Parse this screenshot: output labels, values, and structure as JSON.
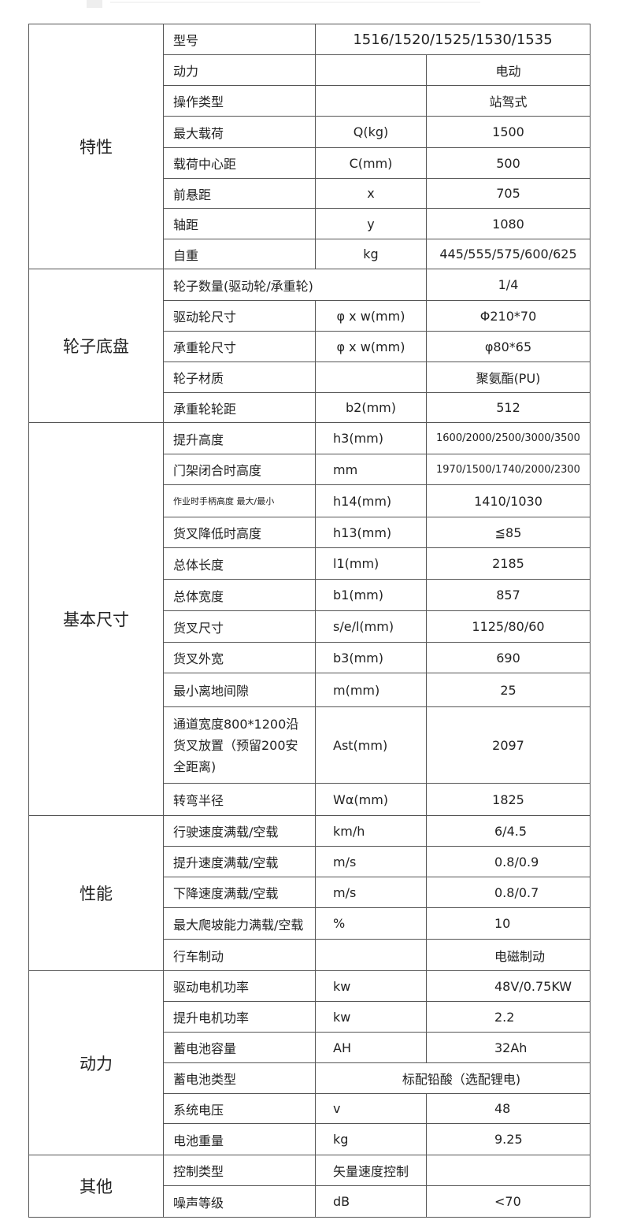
{
  "sections": [
    {
      "category": "特性",
      "rows": [
        {
          "name": "型号",
          "unit": "",
          "value": "1516/1520/1525/1530/1535",
          "span": "unit-value"
        },
        {
          "name": "动力",
          "unit": "",
          "value": "电动"
        },
        {
          "name": "操作类型",
          "unit": "",
          "value": "站驾式"
        },
        {
          "name": "最大载荷",
          "unit": "Q(kg)",
          "value": "1500"
        },
        {
          "name": "载荷中心距",
          "unit": "C(mm)",
          "value": "500"
        },
        {
          "name": "前悬距",
          "unit": "x",
          "value": "705"
        },
        {
          "name": "轴距",
          "unit": "y",
          "value": "1080"
        },
        {
          "name": "自重",
          "unit": "kg",
          "value": "445/555/575/600/625"
        }
      ]
    },
    {
      "category": "轮子底盘",
      "rows": [
        {
          "name": "轮子数量(驱动轮/承重轮)",
          "unit": "",
          "value": "1/4",
          "span": "name-unit"
        },
        {
          "name": "驱动轮尺寸",
          "unit": "φ x w(mm)",
          "value": "Φ210*70"
        },
        {
          "name": "承重轮尺寸",
          "unit": "φ x w(mm)",
          "value": "φ80*65"
        },
        {
          "name": "轮子材质",
          "unit": "",
          "value": "聚氨酯(PU)"
        },
        {
          "name": "承重轮轮距",
          "unit": "b2(mm)",
          "value": "512"
        }
      ]
    },
    {
      "category": "基本尺寸",
      "rows": [
        {
          "name": "提升高度",
          "unit": "h3(mm)",
          "value": "1600/2000/2500/3000/3500"
        },
        {
          "name": "门架闭合时高度",
          "unit": "mm",
          "value": "1970/1500/1740/2000/2300"
        },
        {
          "name": "作业时手柄高度  最大/最小",
          "unit": "h14(mm)",
          "value": "1410/1030"
        },
        {
          "name": "货叉降低时高度",
          "unit": "h13(mm)",
          "value": "≦85"
        },
        {
          "name": "总体长度",
          "unit": "l1(mm)",
          "value": "2185"
        },
        {
          "name": "总体宽度",
          "unit": "b1(mm)",
          "value": "857"
        },
        {
          "name": "货叉尺寸",
          "unit": "s/e/l(mm)",
          "value": "1125/80/60"
        },
        {
          "name": "货叉外宽",
          "unit": "b3(mm)",
          "value": "690"
        },
        {
          "name": "最小离地间隙",
          "unit": "m(mm)",
          "value": "25"
        },
        {
          "name": "通道宽度800*1200沿货叉放置（预留200安全距离)",
          "unit": "Ast(mm)",
          "value": "2097"
        },
        {
          "name": "转弯半径",
          "unit": "Wα(mm)",
          "value": "1825"
        }
      ]
    },
    {
      "category": "性能",
      "rows": [
        {
          "name": "行驶速度满载/空载",
          "unit": "km/h",
          "value": "6/4.5"
        },
        {
          "name": "提升速度满载/空载",
          "unit": "m/s",
          "value": "0.8/0.9"
        },
        {
          "name": "下降速度满载/空载",
          "unit": "m/s",
          "value": "0.8/0.7"
        },
        {
          "name": "最大爬坡能力满载/空载",
          "unit": "%",
          "value": "10"
        },
        {
          "name": "行车制动",
          "unit": "",
          "value": "电磁制动"
        }
      ]
    },
    {
      "category": "动力",
      "rows": [
        {
          "name": "驱动电机功率",
          "unit": "kw",
          "value": "48V/0.75KW"
        },
        {
          "name": "提升电机功率",
          "unit": "kw",
          "value": "2.2"
        },
        {
          "name": "蓄电池容量",
          "unit": "AH",
          "value": "32Ah"
        },
        {
          "name": "蓄电池类型",
          "unit": "",
          "value": "标配铅酸（选配锂电)",
          "span": "unit-value"
        },
        {
          "name": "系统电压",
          "unit": "v",
          "value": "48"
        },
        {
          "name": "电池重量",
          "unit": "kg",
          "value": "9.25"
        }
      ]
    },
    {
      "category": "其他",
      "rows": [
        {
          "name": "控制类型",
          "unit": "矢量速度控制",
          "value": ""
        },
        {
          "name": "噪声等级",
          "unit": "dB",
          "value": "<70"
        }
      ]
    }
  ]
}
